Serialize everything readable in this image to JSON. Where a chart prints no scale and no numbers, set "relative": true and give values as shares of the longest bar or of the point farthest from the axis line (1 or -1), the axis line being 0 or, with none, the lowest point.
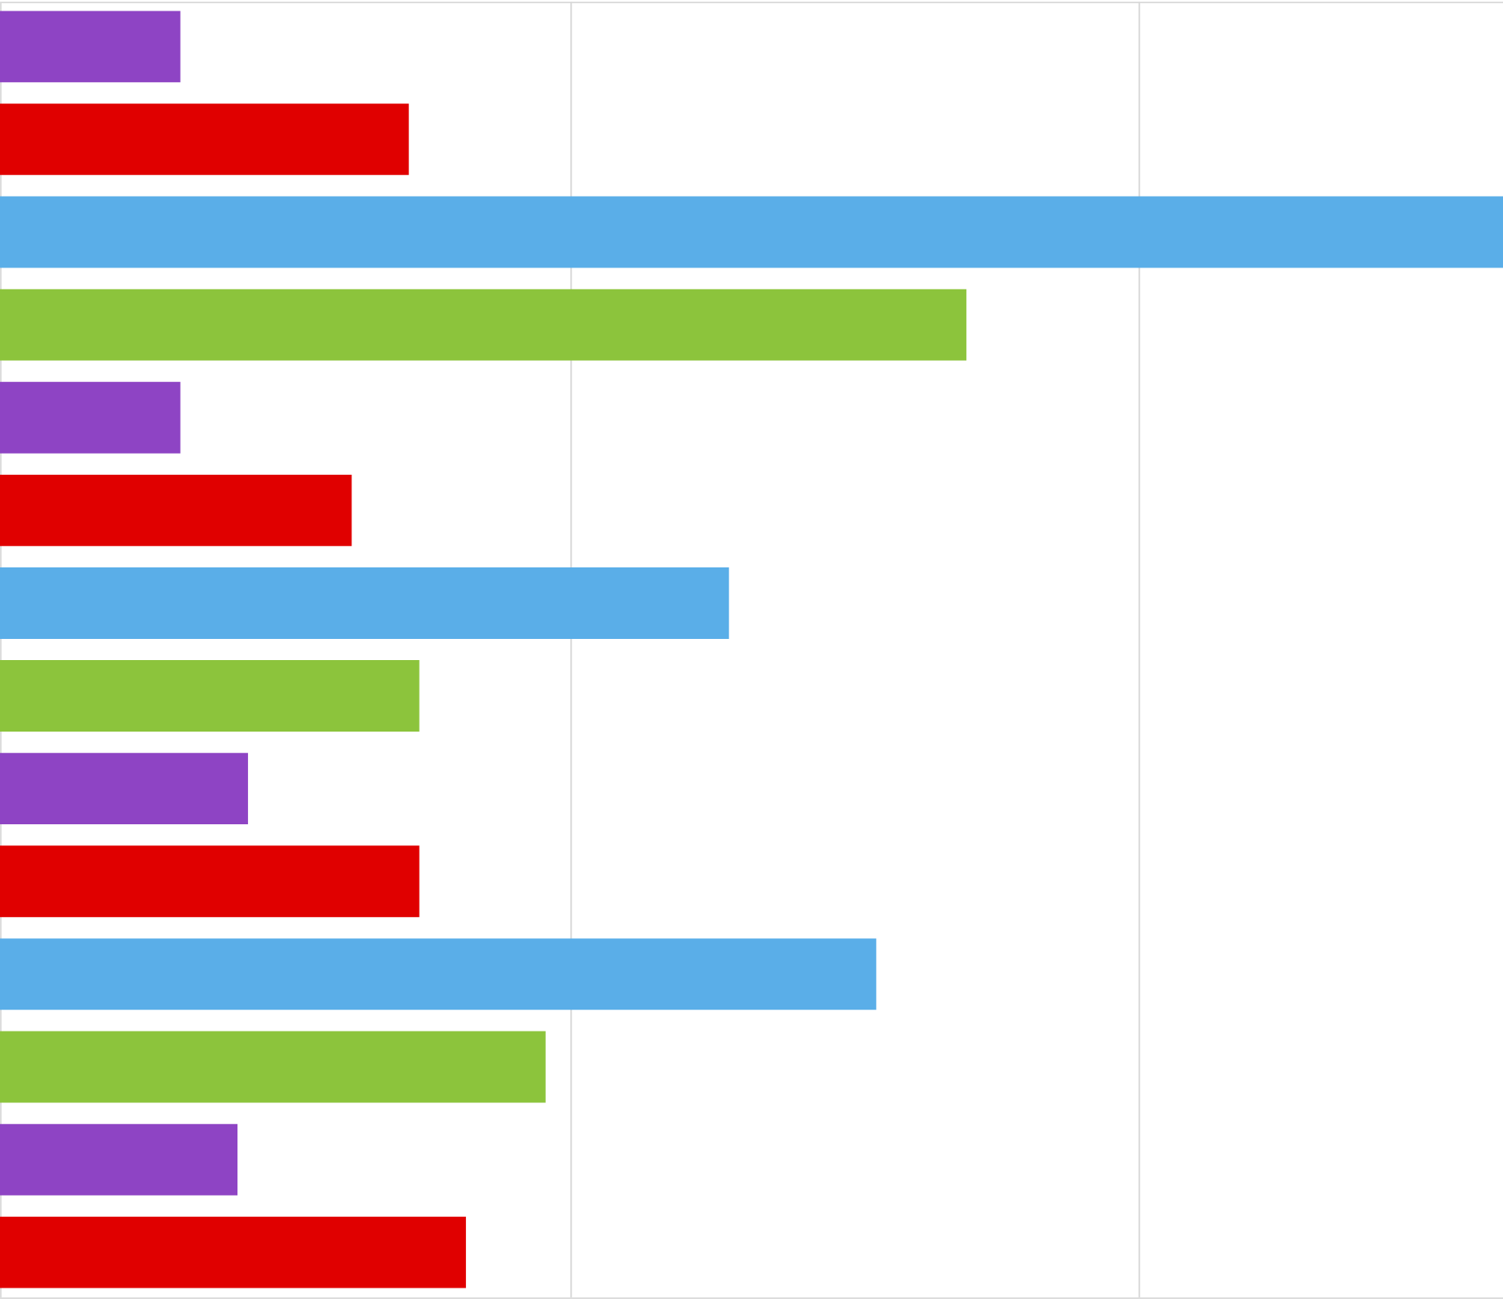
{
  "chart_data": {
    "type": "bar",
    "orientation": "horizontal",
    "relative": true,
    "ref_lines": [
      {
        "axis": "x",
        "value": 0.38,
        "color": "#d9d9d9"
      },
      {
        "axis": "x",
        "value": 0.758,
        "color": "#d9d9d9"
      }
    ],
    "categories": [
      null,
      null,
      null,
      null,
      null,
      null,
      null,
      null,
      null,
      null,
      null,
      null,
      null,
      null
    ],
    "values": [
      0.12,
      0.272,
      1,
      0.643,
      0.12,
      0.234,
      0.485,
      0.279,
      0.165,
      0.279,
      0.583,
      0.363,
      0.158,
      0.31
    ],
    "colors": [
      "#8e44c4",
      "#e00000",
      "#5aaee8",
      "#8cc43c",
      "#8e44c4",
      "#e00000",
      "#5aaee8",
      "#8cc43c",
      "#8e44c4",
      "#e00000",
      "#5aaee8",
      "#8cc43c",
      "#8e44c4",
      "#e00000"
    ]
  }
}
